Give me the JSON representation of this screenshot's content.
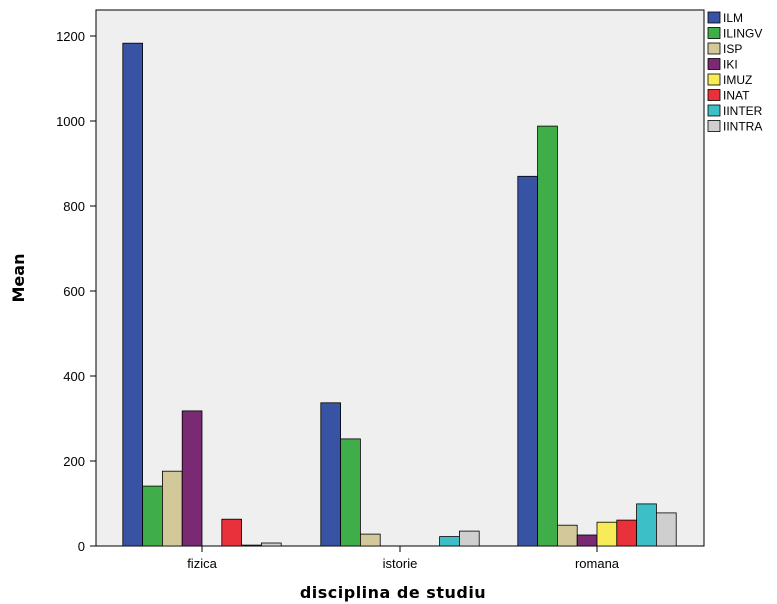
{
  "chart_data": {
    "type": "bar",
    "xlabel": "disciplina de studiu",
    "ylabel": "Mean",
    "categories": [
      "fizica",
      "istorie",
      "romana"
    ],
    "ylim": [
      0,
      1250
    ],
    "yticks": [
      0,
      200,
      400,
      600,
      800,
      1000,
      1200
    ],
    "grid": false,
    "legend_position": "right",
    "series": [
      {
        "name": "ILM",
        "color": "#3953a4",
        "values": [
          1183,
          337,
          870
        ]
      },
      {
        "name": "ILINGV",
        "color": "#3fae49",
        "values": [
          141,
          252,
          988
        ]
      },
      {
        "name": "ISP",
        "color": "#d2c89a",
        "values": [
          176,
          28,
          49
        ]
      },
      {
        "name": "IKI",
        "color": "#7a2a72",
        "values": [
          318,
          0,
          26
        ]
      },
      {
        "name": "IMUZ",
        "color": "#f7ec57",
        "values": [
          0,
          0,
          56
        ]
      },
      {
        "name": "INAT",
        "color": "#e8313a",
        "values": [
          63,
          0,
          61
        ]
      },
      {
        "name": "IINTER",
        "color": "#3cbfc6",
        "values": [
          2,
          22,
          99
        ]
      },
      {
        "name": "IINTRA",
        "color": "#cfcfcf",
        "values": [
          7,
          35,
          78
        ]
      }
    ]
  }
}
